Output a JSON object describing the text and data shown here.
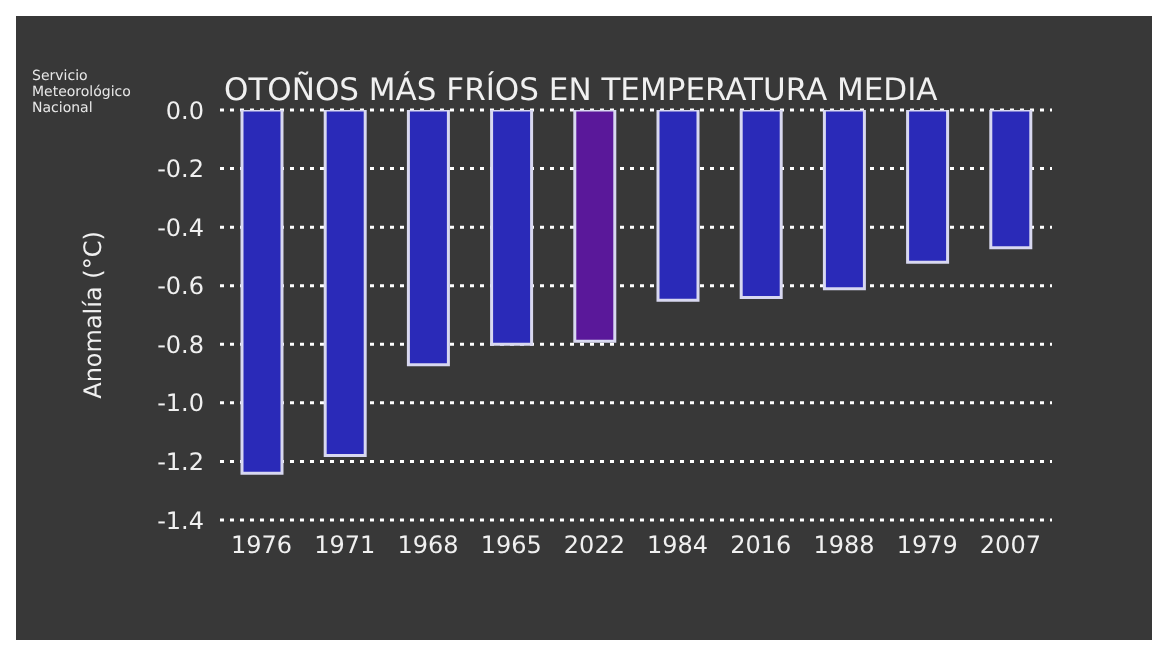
{
  "chart_data": {
    "type": "bar",
    "title": "OTOÑOS MÁS FRÍOS EN TEMPERATURA MEDIA",
    "ylabel": "Anomalía (°C)",
    "annotations": [
      "Servicio Meteorológico Nacional"
    ],
    "categories": [
      "1976",
      "1971",
      "1968",
      "1965",
      "2022",
      "1984",
      "2016",
      "1988",
      "1979",
      "2007"
    ],
    "values": [
      -1.24,
      -1.18,
      -0.87,
      -0.8,
      -0.79,
      -0.65,
      -0.64,
      -0.61,
      -0.52,
      -0.47
    ],
    "colors": [
      "#2a2ab8",
      "#2a2ab8",
      "#2a2ab8",
      "#2a2ab8",
      "#5a189a",
      "#2a2ab8",
      "#2a2ab8",
      "#2a2ab8",
      "#2a2ab8",
      "#2a2ab8"
    ],
    "ylim": [
      -1.4,
      0
    ],
    "yticks": [
      {
        "value": 0,
        "label": "0.0"
      },
      -0.2,
      -0.4,
      -0.6,
      -0.8,
      {
        "value": -1,
        "label": "-1.0"
      },
      -1.2,
      -1.4
    ],
    "grid": "y"
  }
}
